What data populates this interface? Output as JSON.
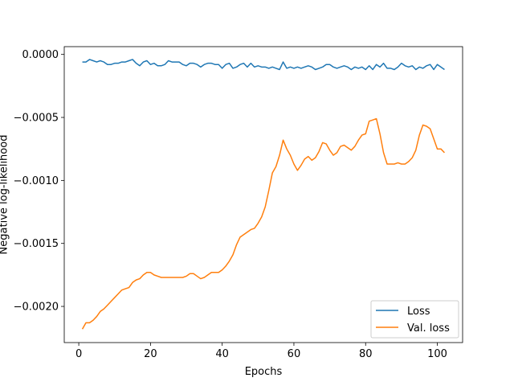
{
  "chart_data": {
    "type": "line",
    "xlabel": "Epochs",
    "ylabel": "Negative log-likelihood",
    "x": [
      1,
      2,
      3,
      4,
      5,
      6,
      7,
      8,
      9,
      10,
      11,
      12,
      13,
      14,
      15,
      16,
      17,
      18,
      19,
      20,
      21,
      22,
      23,
      24,
      25,
      26,
      27,
      28,
      29,
      30,
      31,
      32,
      33,
      34,
      35,
      36,
      37,
      38,
      39,
      40,
      41,
      42,
      43,
      44,
      45,
      46,
      47,
      48,
      49,
      50,
      51,
      52,
      53,
      54,
      55,
      56,
      57,
      58,
      59,
      60,
      61,
      62,
      63,
      64,
      65,
      66,
      67,
      68,
      69,
      70,
      71,
      72,
      73,
      74,
      75,
      76,
      77,
      78,
      79,
      80,
      81,
      82,
      83,
      84,
      85,
      86,
      87,
      88,
      89,
      90,
      91,
      92,
      93,
      94,
      95,
      96,
      97,
      98,
      99,
      100,
      101,
      102
    ],
    "series": [
      {
        "name": "Loss",
        "color": "#1f77b4",
        "values": [
          -6e-05,
          -6e-05,
          -4e-05,
          -5e-05,
          -6e-05,
          -5e-05,
          -6e-05,
          -8e-05,
          -8e-05,
          -7e-05,
          -7e-05,
          -6e-05,
          -6e-05,
          -5e-05,
          -4e-05,
          -7e-05,
          -9e-05,
          -6e-05,
          -5e-05,
          -8e-05,
          -7e-05,
          -9e-05,
          -9e-05,
          -8e-05,
          -5e-05,
          -6e-05,
          -6e-05,
          -6e-05,
          -8e-05,
          -9e-05,
          -7e-05,
          -7e-05,
          -8e-05,
          -0.0001,
          -8e-05,
          -7e-05,
          -7e-05,
          -8e-05,
          -8e-05,
          -0.00011,
          -8e-05,
          -7e-05,
          -0.00011,
          -0.0001,
          -8e-05,
          -7e-05,
          -0.0001,
          -7e-05,
          -0.0001,
          -9e-05,
          -0.0001,
          -0.0001,
          -0.00011,
          -0.0001,
          -0.00011,
          -0.00012,
          -6e-05,
          -0.00011,
          -0.0001,
          -0.00011,
          -0.0001,
          -0.00011,
          -0.0001,
          -9e-05,
          -0.0001,
          -0.00012,
          -0.00011,
          -0.0001,
          -8e-05,
          -8e-05,
          -0.0001,
          -0.00011,
          -0.0001,
          -9e-05,
          -0.0001,
          -0.00012,
          -0.0001,
          -0.00011,
          -0.0001,
          -0.00012,
          -9e-05,
          -0.00012,
          -8e-05,
          -0.0001,
          -7e-05,
          -0.00011,
          -0.00011,
          -0.00012,
          -0.0001,
          -7e-05,
          -9e-05,
          -0.0001,
          -9e-05,
          -0.00012,
          -0.0001,
          -0.00011,
          -9e-05,
          -8e-05,
          -0.00012,
          -8e-05,
          -0.0001,
          -0.00012
        ]
      },
      {
        "name": "Val. loss",
        "color": "#ff7f0e",
        "values": [
          -0.00218,
          -0.00213,
          -0.00213,
          -0.00211,
          -0.00208,
          -0.00204,
          -0.00202,
          -0.00199,
          -0.00196,
          -0.00193,
          -0.0019,
          -0.00187,
          -0.00186,
          -0.00185,
          -0.00181,
          -0.00179,
          -0.00178,
          -0.00175,
          -0.00173,
          -0.00173,
          -0.00175,
          -0.00176,
          -0.00177,
          -0.00177,
          -0.00177,
          -0.00177,
          -0.00177,
          -0.00177,
          -0.00177,
          -0.00176,
          -0.00174,
          -0.00174,
          -0.00176,
          -0.00178,
          -0.00177,
          -0.00175,
          -0.00173,
          -0.00173,
          -0.00173,
          -0.00171,
          -0.00168,
          -0.00164,
          -0.00159,
          -0.00151,
          -0.00145,
          -0.00143,
          -0.00141,
          -0.00139,
          -0.00138,
          -0.00134,
          -0.00129,
          -0.00121,
          -0.00108,
          -0.00094,
          -0.00089,
          -0.0008,
          -0.00068,
          -0.00075,
          -0.0008,
          -0.00087,
          -0.00092,
          -0.00088,
          -0.00083,
          -0.00081,
          -0.00084,
          -0.00082,
          -0.00077,
          -0.0007,
          -0.00071,
          -0.00076,
          -0.0008,
          -0.00078,
          -0.00073,
          -0.00072,
          -0.00074,
          -0.00076,
          -0.00073,
          -0.00068,
          -0.00064,
          -0.00063,
          -0.00053,
          -0.00052,
          -0.00051,
          -0.00063,
          -0.00078,
          -0.00087,
          -0.00087,
          -0.00087,
          -0.00086,
          -0.00087,
          -0.00087,
          -0.00085,
          -0.00082,
          -0.00076,
          -0.00064,
          -0.00056,
          -0.00057,
          -0.00059,
          -0.00067,
          -0.00075,
          -0.00075,
          -0.00078
        ]
      }
    ],
    "xlim": [
      -4.05,
      107.05
    ],
    "ylim": [
      -0.002287,
      6.18e-05
    ],
    "xticks": [
      0,
      20,
      40,
      60,
      80,
      100
    ],
    "yticks": [
      {
        "value": 0,
        "label": "0.0000"
      },
      {
        "value": -0.0005,
        "label": "−0.0005"
      },
      {
        "value": -0.001,
        "label": "−0.0010"
      },
      {
        "value": -0.0015,
        "label": "−0.0015"
      },
      {
        "value": -0.002,
        "label": "−0.0020"
      }
    ],
    "legend": "lower right"
  }
}
